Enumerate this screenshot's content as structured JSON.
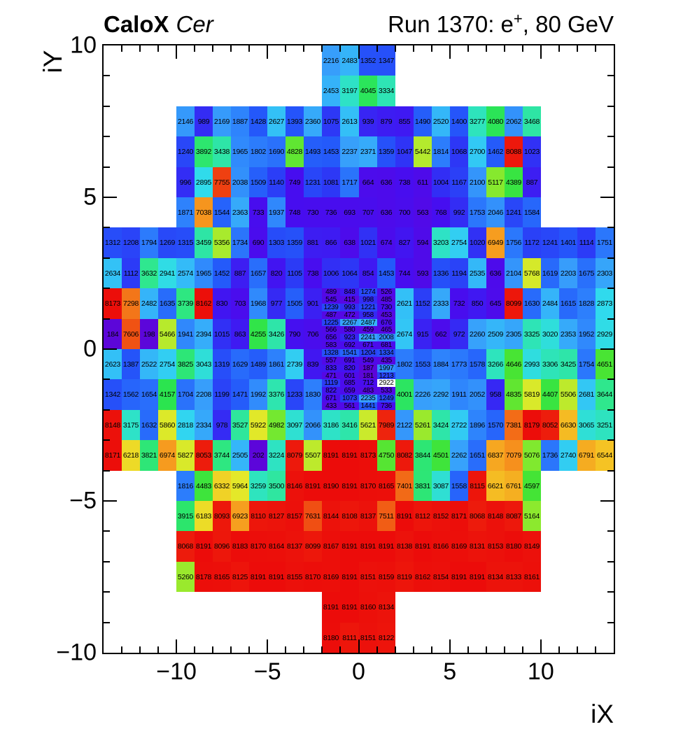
{
  "header": {
    "left_title_bold": "CaloX",
    "left_title_italic": "Cer",
    "right_title_prefix": "Run 1370: e",
    "right_title_sup": "+",
    "right_title_suffix": ", 80 GeV"
  },
  "axes": {
    "x_title": "iX",
    "y_title": "iY",
    "x_range": [
      -14,
      14
    ],
    "y_range": [
      -10,
      10
    ],
    "minor_tick_step": 1,
    "major_tick_step": 5,
    "x_ticks": [
      {
        "v": -10,
        "label": "−10"
      },
      {
        "v": -5,
        "label": "−5"
      },
      {
        "v": 0,
        "label": "0"
      },
      {
        "v": 5,
        "label": "5"
      },
      {
        "v": 10,
        "label": "10"
      }
    ],
    "y_ticks": [
      {
        "v": 10,
        "label": "10"
      },
      {
        "v": 5,
        "label": "5"
      },
      {
        "v": 0,
        "label": "0"
      },
      {
        "v": -5,
        "label": "−5"
      },
      {
        "v": -10,
        "label": "−10"
      }
    ]
  },
  "chart_data": {
    "type": "heatmap",
    "title": "CaloX Cer — Run 1370: e+, 80 GeV",
    "xlabel": "iX",
    "ylabel": "iY",
    "zmin": 0,
    "zmax": 8191,
    "grid": false,
    "legend": "none",
    "palette_stops": [
      [
        0.0,
        96,
        5,
        210
      ],
      [
        0.055,
        86,
        8,
        228
      ],
      [
        0.095,
        70,
        14,
        240
      ],
      [
        0.13,
        45,
        55,
        246
      ],
      [
        0.175,
        36,
        88,
        250
      ],
      [
        0.225,
        45,
        128,
        252
      ],
      [
        0.27,
        55,
        158,
        251
      ],
      [
        0.315,
        52,
        188,
        248
      ],
      [
        0.35,
        48,
        218,
        238
      ],
      [
        0.4,
        46,
        228,
        188
      ],
      [
        0.45,
        47,
        231,
        136
      ],
      [
        0.505,
        42,
        228,
        80
      ],
      [
        0.565,
        70,
        228,
        52
      ],
      [
        0.625,
        134,
        233,
        46
      ],
      [
        0.68,
        198,
        234,
        44
      ],
      [
        0.735,
        232,
        232,
        40
      ],
      [
        0.8,
        245,
        194,
        36
      ],
      [
        0.86,
        246,
        148,
        30
      ],
      [
        0.92,
        241,
        90,
        20
      ],
      [
        1.0,
        236,
        12,
        10
      ]
    ],
    "coarse_rows": [
      {
        "iy_top": 10,
        "x0": -2,
        "values": [
          2216,
          2483,
          1352,
          1347
        ]
      },
      {
        "iy_top": 9,
        "x0": -2,
        "values": [
          2453,
          3197,
          4045,
          3334
        ]
      },
      {
        "iy_top": 8,
        "x0": -10,
        "values": [
          2146,
          989,
          2169,
          1887,
          1428,
          2627,
          1393,
          2360,
          1075,
          2613,
          939,
          879,
          855,
          1490,
          2520,
          1400,
          3277,
          4080,
          2062,
          3468
        ]
      },
      {
        "iy_top": 7,
        "x0": -10,
        "values": [
          1240,
          3892,
          3438,
          1965,
          1802,
          1690,
          4828,
          1493,
          1453,
          2237,
          2371,
          1359,
          1047,
          5442,
          1814,
          1068,
          2700,
          1462,
          8088,
          1023
        ]
      },
      {
        "iy_top": 6,
        "x0": -10,
        "values": [
          996,
          2895,
          7755,
          2038,
          1509,
          1140,
          749,
          1231,
          1081,
          1717,
          664,
          636,
          738,
          611,
          1004,
          1167,
          2100,
          5117,
          4389,
          887
        ]
      },
      {
        "iy_top": 5,
        "x0": -10,
        "values": [
          1871,
          7038,
          1544,
          2363,
          733,
          1937,
          748,
          730,
          736,
          693,
          707,
          636,
          700,
          563,
          768,
          992,
          1753,
          2046,
          1241,
          1584
        ]
      },
      {
        "iy_top": 4,
        "x0": -14,
        "values": [
          1312,
          1208,
          1794,
          1269,
          1315,
          3459,
          5356,
          1734,
          690,
          1303,
          1359,
          881,
          866,
          638,
          1021,
          674,
          827,
          594,
          3203,
          2754,
          1020,
          6949,
          1756,
          1172,
          1241,
          1401,
          1114,
          1751
        ]
      },
      {
        "iy_top": 3,
        "x0": -14,
        "values": [
          2634,
          1112,
          3632,
          2941,
          2574,
          1965,
          1452,
          887,
          1657,
          820,
          1105,
          738,
          1006,
          1064,
          854,
          1453,
          744,
          593,
          1336,
          1194,
          2535,
          636,
          2104,
          5768,
          1619,
          2203,
          1675,
          2303
        ]
      },
      {
        "iy_top": 2,
        "x0": -14,
        "values": [
          8173,
          7298,
          2482,
          1635,
          3739,
          8162,
          830,
          703,
          1968,
          977,
          1505,
          901
        ]
      },
      {
        "iy_top": 2,
        "x0": 2,
        "values": [
          2621,
          1152,
          2333,
          732,
          850,
          645,
          8099,
          1630,
          2484,
          1615,
          1828,
          2873
        ]
      },
      {
        "iy_top": 1,
        "x0": -14,
        "values": [
          184,
          7606,
          198,
          5466,
          1941,
          2394,
          1015,
          863,
          4255,
          3426,
          790,
          706
        ]
      },
      {
        "iy_top": 1,
        "x0": 2,
        "values": [
          2674,
          915,
          662,
          972,
          2260,
          2509,
          2305,
          3325,
          3020,
          2353,
          1952,
          2929
        ]
      },
      {
        "iy_top": 0,
        "x0": -14,
        "values": [
          2623,
          1387,
          2522,
          2754,
          3825,
          3043,
          1319,
          1629,
          1489,
          1861,
          2739,
          839
        ]
      },
      {
        "iy_top": 0,
        "x0": 2,
        "values": [
          1802,
          1553,
          1884,
          1773,
          1578,
          3266,
          4646,
          2993,
          3306,
          3425,
          1754,
          4651
        ]
      },
      {
        "iy_top": -1,
        "x0": -14,
        "values": [
          1342,
          1562,
          1654,
          4157,
          1704,
          2208,
          1199,
          1471,
          1992,
          3376,
          1233,
          1830
        ]
      },
      {
        "iy_top": -1,
        "x0": 2,
        "values": [
          4001,
          2226,
          2292,
          1911,
          2052,
          958,
          4835,
          5819,
          4407,
          5506,
          2681,
          3644
        ]
      },
      {
        "iy_top": -2,
        "x0": -14,
        "values": [
          8148,
          3175,
          1632,
          5860,
          2818,
          2334,
          978,
          3527,
          5922,
          4982,
          3097,
          2066,
          3186,
          3416,
          5621,
          7989,
          2122,
          5261,
          3424,
          2722,
          1896,
          1570,
          7381,
          8179,
          8052,
          6630,
          3065,
          3251
        ]
      },
      {
        "iy_top": -3,
        "x0": -14,
        "values": [
          8171,
          6218,
          3821,
          6974,
          5827,
          8053,
          3744,
          2505,
          202,
          3224,
          8079,
          5507,
          8191,
          8191,
          8173,
          4750,
          8082,
          3844,
          4501,
          2262,
          1651,
          6837,
          7079,
          5076,
          1736,
          2740,
          6791,
          6544
        ]
      },
      {
        "iy_top": -4,
        "x0": -10,
        "values": [
          1816,
          4483,
          6332,
          5964,
          3259,
          3500,
          8146,
          8191,
          8190,
          8191,
          8170,
          8165,
          7401,
          3831,
          3087,
          1558,
          8115,
          6621,
          6761,
          4597
        ]
      },
      {
        "iy_top": -5,
        "x0": -10,
        "values": [
          3915,
          6183,
          8093,
          6923,
          8110,
          8127,
          8157,
          7631,
          8144,
          8108,
          8137,
          7511,
          8191,
          8112,
          8152,
          8171,
          8068,
          8148,
          8087,
          5164
        ]
      },
      {
        "iy_top": -6,
        "x0": -10,
        "values": [
          8068,
          8191,
          8096,
          8183,
          8170,
          8164,
          8137,
          8099,
          8167,
          8191,
          8191,
          8191,
          8138,
          8191,
          8166,
          8169,
          8131,
          8153,
          8180,
          8149
        ]
      },
      {
        "iy_top": -7,
        "x0": -10,
        "values": [
          5260,
          8178,
          8165,
          8125,
          8191,
          8191,
          8155,
          8170,
          8169,
          8191,
          8151,
          8159,
          8119,
          8162,
          8154,
          8191,
          8191,
          8134,
          8133,
          8161
        ]
      },
      {
        "iy_top": -8,
        "x0": -2,
        "values": [
          8191,
          8191,
          8160,
          8134
        ]
      },
      {
        "iy_top": -9,
        "x0": -2,
        "values": [
          8180,
          8111,
          8151,
          8122
        ]
      }
    ],
    "fine_block": {
      "x0": -2,
      "iy_top": 2,
      "cell_w": 1,
      "cell_h": 0.25,
      "rows": [
        [
          489,
          848,
          1274,
          526
        ],
        [
          545,
          415,
          998,
          485
        ],
        [
          1239,
          993,
          1221,
          730
        ],
        [
          487,
          472,
          958,
          453
        ],
        [
          1225,
          2267,
          2487,
          676
        ],
        [
          566,
          580,
          459,
          465
        ],
        [
          656,
          923,
          2241,
          2008
        ],
        [
          583,
          692,
          671,
          681
        ],
        [
          1328,
          1541,
          1204,
          1334
        ],
        [
          557,
          691,
          549,
          435
        ],
        [
          833,
          820,
          187,
          1997
        ],
        [
          471,
          601,
          181,
          1213
        ],
        [
          1119,
          685,
          712,
          2922
        ],
        [
          822,
          659,
          483,
          533
        ],
        [
          671,
          1073,
          2235,
          1249
        ],
        [
          433,
          561,
          1441,
          736
        ]
      ],
      "white_cell": {
        "row": 12,
        "col": 3,
        "color": "#ffffff"
      }
    }
  }
}
